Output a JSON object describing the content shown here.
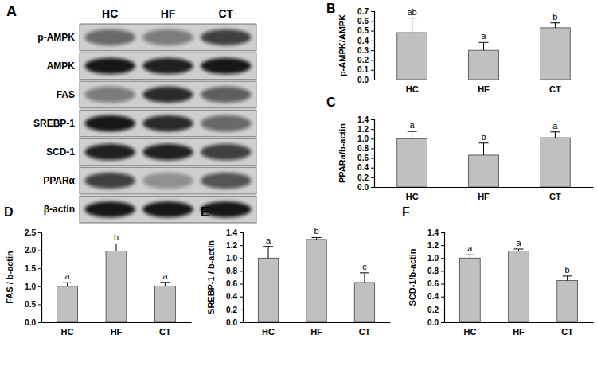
{
  "blot": {
    "panel": "A",
    "lanes": [
      "HC",
      "HF",
      "CT"
    ],
    "rows": [
      {
        "label": "p-AMPK",
        "intensities": [
          0.55,
          0.45,
          0.75
        ]
      },
      {
        "label": "AMPK",
        "intensities": [
          0.95,
          0.9,
          0.95
        ]
      },
      {
        "label": "FAS",
        "intensities": [
          0.45,
          0.85,
          0.6
        ]
      },
      {
        "label": "SREBP-1",
        "intensities": [
          0.95,
          0.85,
          0.55
        ]
      },
      {
        "label": "SCD-1",
        "intensities": [
          0.9,
          0.9,
          0.75
        ]
      },
      {
        "label": "PPARα",
        "intensities": [
          0.75,
          0.35,
          0.65
        ]
      },
      {
        "label": "β-actin",
        "intensities": [
          0.95,
          0.95,
          0.95
        ]
      }
    ]
  },
  "chart_data": [
    {
      "type": "bar",
      "panel": "B",
      "ylabel": "p-AMPK/AMPK",
      "categories": [
        "HC",
        "HF",
        "CT"
      ],
      "values": [
        0.48,
        0.3,
        0.53
      ],
      "errors": [
        0.15,
        0.08,
        0.05
      ],
      "annotations": [
        "ab",
        "a",
        "b"
      ],
      "color": "#c0c0c0",
      "ylim": [
        0,
        0.7
      ],
      "yticks": [
        {
          "value": 0,
          "label": "0.0"
        },
        {
          "value": 0.1,
          "label": "0.1"
        },
        {
          "value": 0.2,
          "label": "0.2"
        },
        {
          "value": 0.3,
          "label": "0.3"
        },
        {
          "value": 0.4,
          "label": "0.4"
        },
        {
          "value": 0.5,
          "label": "0.5"
        },
        {
          "value": 0.6,
          "label": "0.6"
        },
        {
          "value": 0.7,
          "label": "0.7"
        }
      ]
    },
    {
      "type": "bar",
      "panel": "C",
      "ylabel": "PPARa/b-actin",
      "categories": [
        "HC",
        "HF",
        "CT"
      ],
      "values": [
        1.0,
        0.66,
        1.02
      ],
      "errors": [
        0.15,
        0.25,
        0.12
      ],
      "annotations": [
        "a",
        "b",
        "a"
      ],
      "color": "#c0c0c0",
      "ylim": [
        0,
        1.4
      ],
      "yticks": [
        {
          "value": 0,
          "label": "0.0"
        },
        {
          "value": 0.2,
          "label": "0.2"
        },
        {
          "value": 0.4,
          "label": "0.4"
        },
        {
          "value": 0.6,
          "label": "0.6"
        },
        {
          "value": 0.8,
          "label": "0.8"
        },
        {
          "value": 1.0,
          "label": "1.0"
        },
        {
          "value": 1.2,
          "label": "1.2"
        },
        {
          "value": 1.4,
          "label": "1.4"
        }
      ]
    },
    {
      "type": "bar",
      "panel": "D",
      "ylabel": "FAS / b-actin",
      "categories": [
        "HC",
        "HF",
        "CT"
      ],
      "values": [
        1.0,
        1.98,
        1.01
      ],
      "errors": [
        0.1,
        0.2,
        0.1
      ],
      "annotations": [
        "a",
        "b",
        "a"
      ],
      "color": "#c0c0c0",
      "ylim": [
        0,
        2.5
      ],
      "yticks": [
        {
          "value": 0,
          "label": "0.0"
        },
        {
          "value": 0.5,
          "label": "0.5"
        },
        {
          "value": 1.0,
          "label": "1.0"
        },
        {
          "value": 1.5,
          "label": "1.5"
        },
        {
          "value": 2.0,
          "label": "2.0"
        },
        {
          "value": 2.5,
          "label": "2.5"
        }
      ]
    },
    {
      "type": "bar",
      "panel": "E",
      "ylabel": "SREBP-1 / b-actin",
      "categories": [
        "HC",
        "HF",
        "CT"
      ],
      "values": [
        1.0,
        1.29,
        0.62
      ],
      "errors": [
        0.18,
        0.03,
        0.15
      ],
      "annotations": [
        "a",
        "b",
        "c"
      ],
      "color": "#c0c0c0",
      "ylim": [
        0,
        1.4
      ],
      "yticks": [
        {
          "value": 0,
          "label": "0.0"
        },
        {
          "value": 0.2,
          "label": "0.2"
        },
        {
          "value": 0.4,
          "label": "0.4"
        },
        {
          "value": 0.6,
          "label": "0.6"
        },
        {
          "value": 0.8,
          "label": "0.8"
        },
        {
          "value": 1.0,
          "label": "1.0"
        },
        {
          "value": 1.2,
          "label": "1.2"
        },
        {
          "value": 1.4,
          "label": "1.4"
        }
      ]
    },
    {
      "type": "bar",
      "panel": "F",
      "ylabel": "SCD-1/b-actin",
      "categories": [
        "HC",
        "HF",
        "CT"
      ],
      "values": [
        1.0,
        1.11,
        0.65
      ],
      "errors": [
        0.05,
        0.03,
        0.07
      ],
      "annotations": [
        "a",
        "a",
        "b"
      ],
      "color": "#c0c0c0",
      "ylim": [
        0,
        1.4
      ],
      "yticks": [
        {
          "value": 0,
          "label": "0.0"
        },
        {
          "value": 0.2,
          "label": "0.2"
        },
        {
          "value": 0.4,
          "label": "0.4"
        },
        {
          "value": 0.6,
          "label": "0.6"
        },
        {
          "value": 0.8,
          "label": "0.8"
        },
        {
          "value": 1.0,
          "label": "1.0"
        },
        {
          "value": 1.2,
          "label": "1.2"
        },
        {
          "value": 1.4,
          "label": "1.4"
        }
      ]
    }
  ]
}
